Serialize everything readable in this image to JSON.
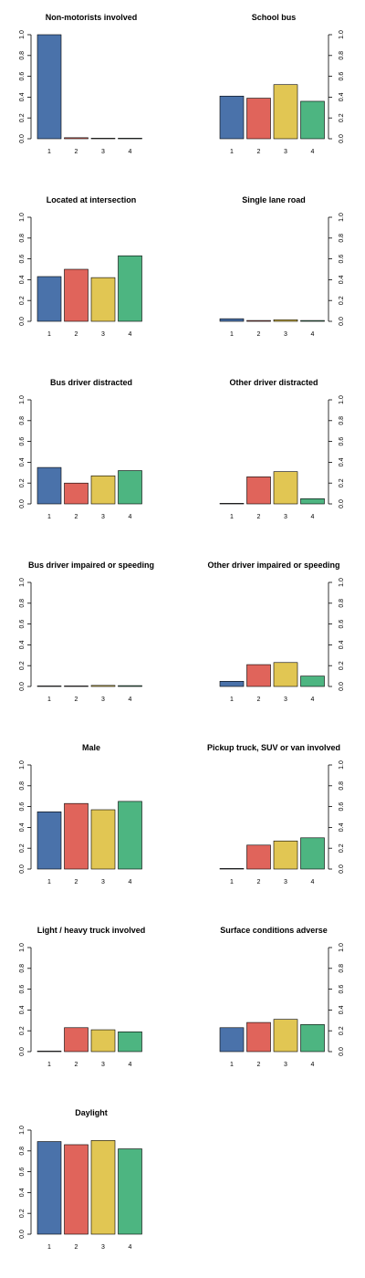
{
  "colors": [
    "#4a72aa",
    "#e0645b",
    "#e1c653",
    "#4db581"
  ],
  "chart_data": [
    {
      "type": "bar",
      "title": "Non-motorists involved",
      "categories": [
        "1",
        "2",
        "3",
        "4"
      ],
      "values": [
        1.0,
        0.01,
        0.005,
        0.005
      ],
      "ylim": [
        0,
        1
      ],
      "yticks": [
        "0.0",
        "0.2",
        "0.4",
        "0.6",
        "0.8",
        "1.0"
      ],
      "axis_side": "left",
      "grid": false
    },
    {
      "type": "bar",
      "title": "School bus",
      "categories": [
        "1",
        "2",
        "3",
        "4"
      ],
      "values": [
        0.41,
        0.39,
        0.52,
        0.36
      ],
      "ylim": [
        0,
        1
      ],
      "yticks": [
        "0.0",
        "0.2",
        "0.4",
        "0.6",
        "0.8",
        "1.0"
      ],
      "axis_side": "right",
      "grid": false
    },
    {
      "type": "bar",
      "title": "Located at intersection",
      "categories": [
        "1",
        "2",
        "3",
        "4"
      ],
      "values": [
        0.43,
        0.5,
        0.42,
        0.63
      ],
      "ylim": [
        0,
        1
      ],
      "yticks": [
        "0.0",
        "0.2",
        "0.4",
        "0.6",
        "0.8",
        "1.0"
      ],
      "axis_side": "left",
      "grid": false
    },
    {
      "type": "bar",
      "title": "Single lane road",
      "categories": [
        "1",
        "2",
        "3",
        "4"
      ],
      "values": [
        0.025,
        0.008,
        0.015,
        0.008
      ],
      "ylim": [
        0,
        1
      ],
      "yticks": [
        "0.0",
        "0.2",
        "0.4",
        "0.6",
        "0.8",
        "1.0"
      ],
      "axis_side": "right",
      "grid": false
    },
    {
      "type": "bar",
      "title": "Bus driver distracted",
      "categories": [
        "1",
        "2",
        "3",
        "4"
      ],
      "values": [
        0.35,
        0.2,
        0.27,
        0.32
      ],
      "ylim": [
        0,
        1
      ],
      "yticks": [
        "0.0",
        "0.2",
        "0.4",
        "0.6",
        "0.8",
        "1.0"
      ],
      "axis_side": "left",
      "grid": false
    },
    {
      "type": "bar",
      "title": "Other driver distracted",
      "categories": [
        "1",
        "2",
        "3",
        "4"
      ],
      "values": [
        0.005,
        0.26,
        0.31,
        0.05
      ],
      "ylim": [
        0,
        1
      ],
      "yticks": [
        "0.0",
        "0.2",
        "0.4",
        "0.6",
        "0.8",
        "1.0"
      ],
      "axis_side": "right",
      "grid": false
    },
    {
      "type": "bar",
      "title": "Bus driver impaired or speeding",
      "categories": [
        "1",
        "2",
        "3",
        "4"
      ],
      "values": [
        0.005,
        0.005,
        0.01,
        0.008
      ],
      "ylim": [
        0,
        1
      ],
      "yticks": [
        "0.0",
        "0.2",
        "0.4",
        "0.6",
        "0.8",
        "1.0"
      ],
      "axis_side": "left",
      "grid": false
    },
    {
      "type": "bar",
      "title": "Other driver impaired or speeding",
      "categories": [
        "1",
        "2",
        "3",
        "4"
      ],
      "values": [
        0.05,
        0.21,
        0.23,
        0.1
      ],
      "ylim": [
        0,
        1
      ],
      "yticks": [
        "0.0",
        "0.2",
        "0.4",
        "0.6",
        "0.8",
        "1.0"
      ],
      "axis_side": "right",
      "grid": false
    },
    {
      "type": "bar",
      "title": "Male",
      "categories": [
        "1",
        "2",
        "3",
        "4"
      ],
      "values": [
        0.55,
        0.63,
        0.57,
        0.65
      ],
      "ylim": [
        0,
        1
      ],
      "yticks": [
        "0.0",
        "0.2",
        "0.4",
        "0.6",
        "0.8",
        "1.0"
      ],
      "axis_side": "left",
      "grid": false
    },
    {
      "type": "bar",
      "title": "Pickup truck, SUV or van involved",
      "categories": [
        "1",
        "2",
        "3",
        "4"
      ],
      "values": [
        0.005,
        0.23,
        0.27,
        0.3
      ],
      "ylim": [
        0,
        1
      ],
      "yticks": [
        "0.0",
        "0.2",
        "0.4",
        "0.6",
        "0.8",
        "1.0"
      ],
      "axis_side": "right",
      "grid": false
    },
    {
      "type": "bar",
      "title": "Light / heavy truck involved",
      "categories": [
        "1",
        "2",
        "3",
        "4"
      ],
      "values": [
        0.005,
        0.23,
        0.21,
        0.19
      ],
      "ylim": [
        0,
        1
      ],
      "yticks": [
        "0.0",
        "0.2",
        "0.4",
        "0.6",
        "0.8",
        "1.0"
      ],
      "axis_side": "left",
      "grid": false
    },
    {
      "type": "bar",
      "title": "Surface conditions adverse",
      "categories": [
        "1",
        "2",
        "3",
        "4"
      ],
      "values": [
        0.23,
        0.28,
        0.31,
        0.26
      ],
      "ylim": [
        0,
        1
      ],
      "yticks": [
        "0.0",
        "0.2",
        "0.4",
        "0.6",
        "0.8",
        "1.0"
      ],
      "axis_side": "right",
      "grid": false
    },
    {
      "type": "bar",
      "title": "Daylight",
      "categories": [
        "1",
        "2",
        "3",
        "4"
      ],
      "values": [
        0.89,
        0.86,
        0.9,
        0.82
      ],
      "ylim": [
        0,
        1
      ],
      "yticks": [
        "0.0",
        "0.2",
        "0.4",
        "0.6",
        "0.8",
        "1.0"
      ],
      "axis_side": "left",
      "grid": false
    }
  ]
}
